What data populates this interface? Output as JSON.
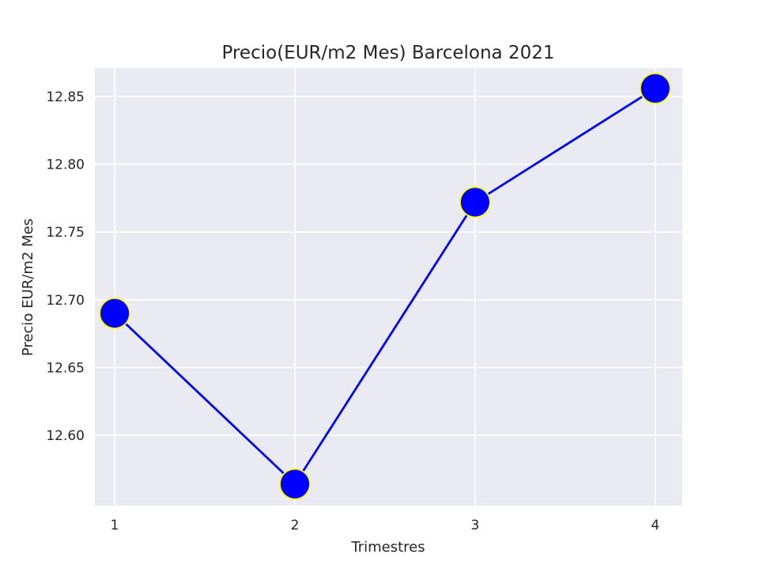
{
  "chart_data": {
    "type": "line",
    "title": "Precio(EUR/m2 Mes) Barcelona 2021",
    "xlabel": "Trimestres",
    "ylabel": "Precio EUR/m2 Mes",
    "x": [
      1,
      2,
      3,
      4
    ],
    "x_tick_labels": [
      "1",
      "2",
      "3",
      "4"
    ],
    "series": [
      {
        "values": [
          12.69,
          12.564,
          12.772,
          12.856
        ]
      }
    ],
    "xlim": [
      0.89,
      4.15
    ],
    "ylim": [
      12.548,
      12.871
    ],
    "y_ticks": [
      12.6,
      12.65,
      12.7,
      12.75,
      12.8,
      12.85
    ],
    "y_tick_labels": [
      "12.60",
      "12.65",
      "12.70",
      "12.75",
      "12.80",
      "12.85"
    ],
    "grid": true,
    "colors": {
      "plot_background": "#eaeaf2",
      "grid": "#ffffff",
      "line": "#0000ff",
      "marker_fill": "#0000ff",
      "marker_edge": "#ffff00"
    }
  }
}
